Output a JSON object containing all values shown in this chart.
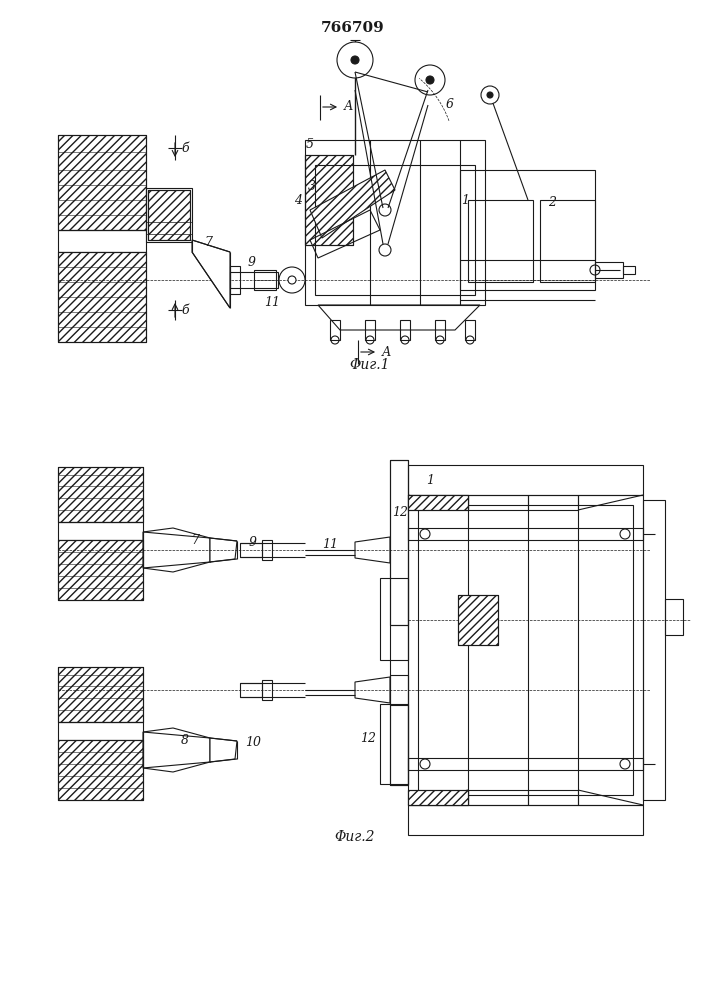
{
  "title": "766709",
  "fig1_caption": "Φиг.1",
  "fig2_caption": "Φиг.2",
  "bg_color": "#ffffff",
  "line_color": "#1a1a1a",
  "title_fontsize": 11,
  "caption_fontsize": 10,
  "label_fontsize": 9
}
